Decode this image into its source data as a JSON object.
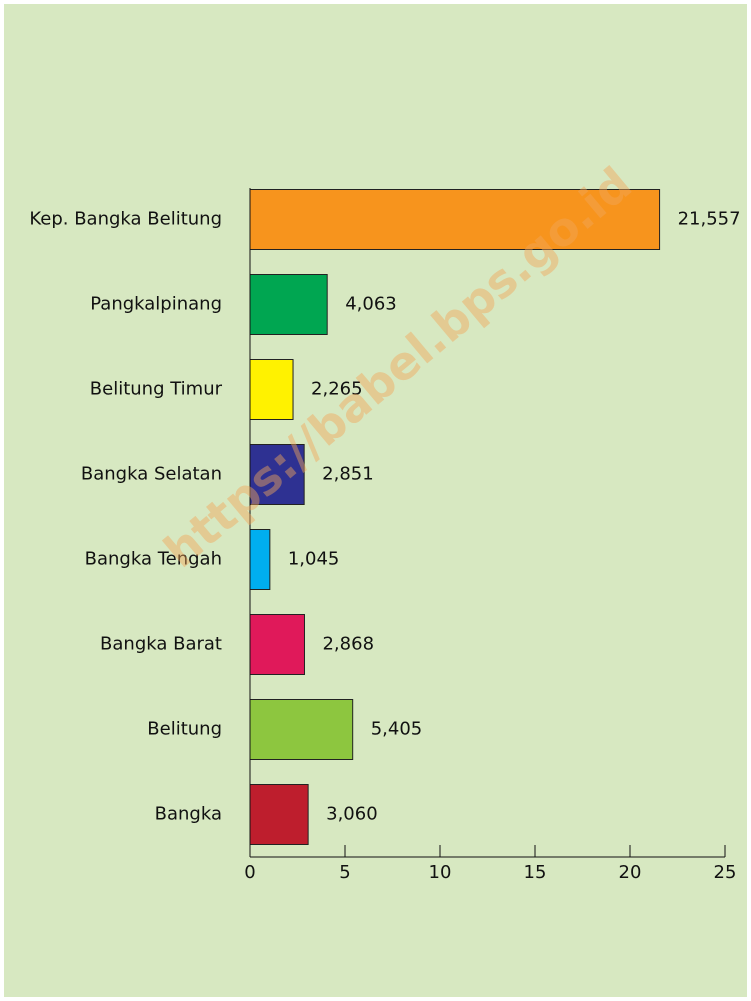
{
  "chart_data": {
    "type": "bar",
    "orientation": "horizontal",
    "watermark": "https://babel.bps.go.id",
    "categories": [
      "Kep. Bangka Belitung",
      "Pangkalpinang",
      "Belitung Timur",
      "Bangka Selatan",
      "Bangka Tengah",
      "Bangka Barat",
      "Belitung",
      "Bangka"
    ],
    "values": [
      21.557,
      4.063,
      2.265,
      2.851,
      1.045,
      2.868,
      5.405,
      3.06
    ],
    "value_labels": [
      "21,557",
      "4,063",
      "2,265",
      "2,851",
      "1,045",
      "2,868",
      "5,405",
      "3,060"
    ],
    "colors": [
      "#f7941d",
      "#00a651",
      "#fff200",
      "#2e3192",
      "#00aeef",
      "#e0195a",
      "#8dc63f",
      "#be1e2d"
    ],
    "xlim": [
      0,
      25
    ],
    "xticks": [
      0,
      5,
      10,
      15,
      20,
      25
    ]
  }
}
